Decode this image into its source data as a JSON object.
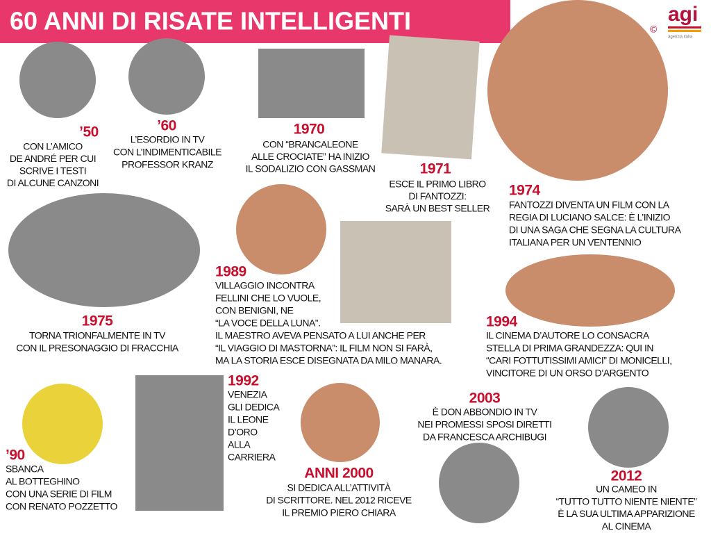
{
  "header": {
    "title": "60 ANNI DI RISATE INTELLIGENTI",
    "logo": "agi",
    "copyright": "©",
    "logo_subtitle": "agenzia italia"
  },
  "entries": [
    {
      "year": "’50",
      "lines": [
        "CON L’AMICO",
        "DE ANDRÉ PER CUI",
        "SCRIVE I TESTI",
        "DI ALCUNE CANZONI"
      ]
    },
    {
      "year": "’60",
      "lines": [
        "L’ESORDIO IN TV",
        "CON L’INDIMENTICABILE",
        "PROFESSOR KRANZ"
      ]
    },
    {
      "year": "1970",
      "lines": [
        "CON “BRANCALEONE",
        "ALLE CROCIATE” HA INIZIO",
        "IL SODALIZIO CON GASSMAN"
      ]
    },
    {
      "year": "1971",
      "lines": [
        "ESCE IL PRIMO LIBRO",
        "DI FANTOZZI:",
        "SARÀ UN BEST SELLER"
      ]
    },
    {
      "year": "1974",
      "lines": [
        "FANTOZZI DIVENTA UN FILM CON LA",
        "REGIA DI LUCIANO SALCE: È L’INIZIO",
        "DI UNA SAGA CHE SEGNA LA CULTURA",
        "ITALIANA PER UN VENTENNIO"
      ]
    },
    {
      "year": "1975",
      "lines": [
        "TORNA TRIONFALMENTE IN TV",
        "CON IL PRESONAGGIO DI FRACCHIA"
      ]
    },
    {
      "year": "1989",
      "lines": [
        "VILLAGGIO INCONTRA",
        "FELLINI CHE LO VUOLE,",
        "CON BENIGNI, NE",
        "“LA VOCE DELLA LUNA”.",
        "IL MAESTRO AVEVA PENSATO A LUI ANCHE PER",
        "“IL VIAGGIO DI MASTORNA”: IL FILM NON SI FARÀ,",
        "MA LA STORIA ESCE DISEGNATA DA MILO MANARA."
      ]
    },
    {
      "year": "1994",
      "lines": [
        "IL CINEMA D’AUTORE LO CONSACRA",
        "STELLA DI PRIMA GRANDEZZA: QUI IN",
        "“CARI FOTTUTISSIMI AMICI” DI MONICELLI,",
        "VINCITORE DI UN ORSO D’ARGENTO"
      ]
    },
    {
      "year": "’90",
      "lines": [
        "SBANCA",
        "AL BOTTEGHINO",
        "CON UNA SERIE DI FILM",
        "CON RENATO POZZETTO"
      ]
    },
    {
      "year": "1992",
      "lines": [
        "VENEZIA",
        "GLI DEDICA",
        "IL LEONE",
        "D’ORO",
        "ALLA",
        "CARRIERA"
      ]
    },
    {
      "year": "ANNI 2000",
      "lines": [
        "SI DEDICA ALL’ATTIVITÀ",
        "DI SCRITTORE. NEL 2012 RICEVE",
        "IL PREMIO PIERO CHIARA"
      ]
    },
    {
      "year": "2003",
      "lines": [
        "È DON ABBONDIO IN TV",
        "NEI PROMESSI SPOSI DIRETTI",
        "DA FRANCESCA ARCHIBUGI"
      ]
    },
    {
      "year": "2012",
      "lines": [
        "UN CAMEO IN",
        "“TUTTO TUTTO NIENTE NIENTE”",
        "È LA SUA ULTIMA APPARIZIONE",
        "AL CINEMA"
      ]
    }
  ]
}
